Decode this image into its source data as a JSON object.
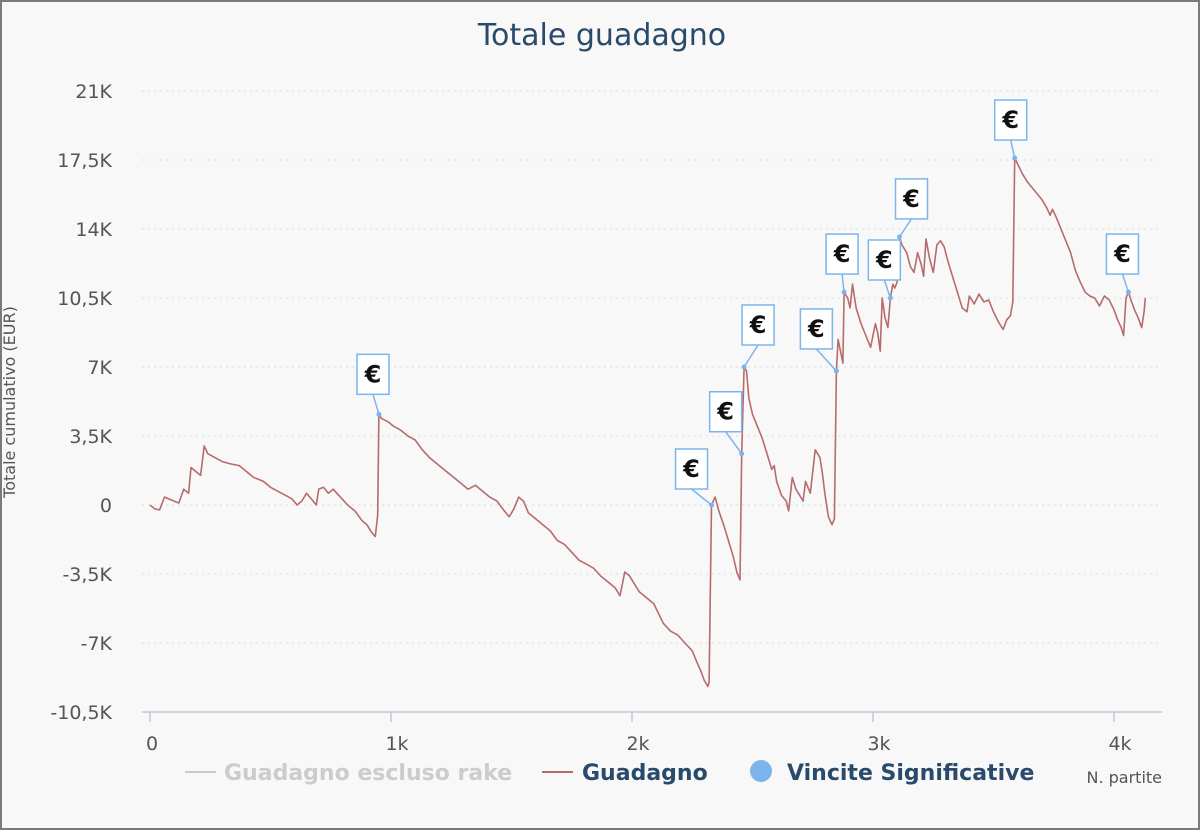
{
  "chart_data": {
    "type": "line",
    "title": "Totale guadagno",
    "xlabel": "N. partite",
    "ylabel": "Totale cumulativo (EUR)",
    "xlim": [
      0,
      4200
    ],
    "ylim": [
      -10500,
      21000
    ],
    "x_ticks": [
      {
        "value": 0,
        "label": "0"
      },
      {
        "value": 1000,
        "label": "1k"
      },
      {
        "value": 2000,
        "label": "2k"
      },
      {
        "value": 3000,
        "label": "3k"
      },
      {
        "value": 4000,
        "label": "4k"
      }
    ],
    "y_ticks": [
      {
        "value": 21000,
        "label": "21K"
      },
      {
        "value": 17500,
        "label": "17,5K"
      },
      {
        "value": 14000,
        "label": "14K"
      },
      {
        "value": 10500,
        "label": "10,5K"
      },
      {
        "value": 7000,
        "label": "7K"
      },
      {
        "value": 3500,
        "label": "3,5K"
      },
      {
        "value": 0,
        "label": "0"
      },
      {
        "value": -3500,
        "label": "-3,5K"
      },
      {
        "value": -7000,
        "label": "-7K"
      },
      {
        "value": -10500,
        "label": "-10,5K"
      }
    ],
    "grid": true,
    "legend_position": "bottom",
    "series": [
      {
        "name": "Guadagno escluso rake",
        "color": "#cccccc",
        "hidden": true,
        "points": []
      },
      {
        "name": "Guadagno",
        "color": "#b86b6b",
        "points": [
          [
            0,
            0
          ],
          [
            20,
            -200
          ],
          [
            40,
            -250
          ],
          [
            60,
            400
          ],
          [
            80,
            300
          ],
          [
            100,
            200
          ],
          [
            120,
            100
          ],
          [
            140,
            800
          ],
          [
            160,
            600
          ],
          [
            170,
            1900
          ],
          [
            190,
            1700
          ],
          [
            210,
            1500
          ],
          [
            225,
            3000
          ],
          [
            240,
            2600
          ],
          [
            270,
            2400
          ],
          [
            300,
            2200
          ],
          [
            330,
            2100
          ],
          [
            370,
            2000
          ],
          [
            400,
            1700
          ],
          [
            430,
            1400
          ],
          [
            470,
            1200
          ],
          [
            500,
            900
          ],
          [
            530,
            700
          ],
          [
            560,
            500
          ],
          [
            590,
            300
          ],
          [
            610,
            0
          ],
          [
            630,
            200
          ],
          [
            650,
            600
          ],
          [
            670,
            300
          ],
          [
            690,
            0
          ],
          [
            700,
            800
          ],
          [
            720,
            900
          ],
          [
            740,
            600
          ],
          [
            760,
            800
          ],
          [
            790,
            400
          ],
          [
            820,
            0
          ],
          [
            850,
            -300
          ],
          [
            880,
            -800
          ],
          [
            900,
            -1000
          ],
          [
            920,
            -1400
          ],
          [
            935,
            -1600
          ],
          [
            945,
            -500
          ],
          [
            950,
            4600
          ],
          [
            960,
            4400
          ],
          [
            990,
            4200
          ],
          [
            1010,
            4000
          ],
          [
            1040,
            3800
          ],
          [
            1070,
            3500
          ],
          [
            1100,
            3300
          ],
          [
            1130,
            2800
          ],
          [
            1160,
            2400
          ],
          [
            1200,
            2000
          ],
          [
            1230,
            1700
          ],
          [
            1260,
            1400
          ],
          [
            1290,
            1100
          ],
          [
            1320,
            800
          ],
          [
            1350,
            1000
          ],
          [
            1380,
            700
          ],
          [
            1410,
            400
          ],
          [
            1440,
            200
          ],
          [
            1470,
            -300
          ],
          [
            1490,
            -600
          ],
          [
            1510,
            -200
          ],
          [
            1530,
            400
          ],
          [
            1550,
            200
          ],
          [
            1570,
            -400
          ],
          [
            1600,
            -700
          ],
          [
            1630,
            -1000
          ],
          [
            1660,
            -1300
          ],
          [
            1690,
            -1800
          ],
          [
            1720,
            -2000
          ],
          [
            1750,
            -2400
          ],
          [
            1780,
            -2800
          ],
          [
            1810,
            -3000
          ],
          [
            1840,
            -3200
          ],
          [
            1870,
            -3600
          ],
          [
            1900,
            -3900
          ],
          [
            1930,
            -4200
          ],
          [
            1950,
            -4600
          ],
          [
            1970,
            -3400
          ],
          [
            1990,
            -3600
          ],
          [
            2010,
            -4000
          ],
          [
            2030,
            -4400
          ],
          [
            2060,
            -4700
          ],
          [
            2090,
            -5000
          ],
          [
            2110,
            -5500
          ],
          [
            2130,
            -6000
          ],
          [
            2160,
            -6400
          ],
          [
            2190,
            -6600
          ],
          [
            2220,
            -7000
          ],
          [
            2250,
            -7400
          ],
          [
            2270,
            -8000
          ],
          [
            2285,
            -8400
          ],
          [
            2300,
            -8900
          ],
          [
            2315,
            -9200
          ],
          [
            2320,
            -9000
          ],
          [
            2330,
            0
          ],
          [
            2345,
            400
          ],
          [
            2360,
            -300
          ],
          [
            2380,
            -1000
          ],
          [
            2400,
            -1800
          ],
          [
            2420,
            -2600
          ],
          [
            2435,
            -3400
          ],
          [
            2448,
            -3800
          ],
          [
            2455,
            2600
          ],
          [
            2465,
            7000
          ],
          [
            2475,
            6800
          ],
          [
            2485,
            5400
          ],
          [
            2500,
            4600
          ],
          [
            2520,
            4000
          ],
          [
            2540,
            3400
          ],
          [
            2560,
            2600
          ],
          [
            2580,
            1800
          ],
          [
            2590,
            2000
          ],
          [
            2600,
            1200
          ],
          [
            2620,
            500
          ],
          [
            2640,
            200
          ],
          [
            2650,
            -300
          ],
          [
            2665,
            1400
          ],
          [
            2680,
            800
          ],
          [
            2700,
            400
          ],
          [
            2710,
            200
          ],
          [
            2720,
            1200
          ],
          [
            2740,
            600
          ],
          [
            2760,
            2800
          ],
          [
            2780,
            2400
          ],
          [
            2790,
            1600
          ],
          [
            2800,
            600
          ],
          [
            2815,
            -600
          ],
          [
            2830,
            -1000
          ],
          [
            2840,
            -700
          ],
          [
            2848,
            6800
          ],
          [
            2855,
            8400
          ],
          [
            2865,
            7800
          ],
          [
            2875,
            7200
          ],
          [
            2880,
            10800
          ],
          [
            2895,
            10500
          ],
          [
            2905,
            10000
          ],
          [
            2915,
            11200
          ],
          [
            2930,
            10000
          ],
          [
            2950,
            9200
          ],
          [
            2970,
            8600
          ],
          [
            2990,
            8000
          ],
          [
            3010,
            9200
          ],
          [
            3020,
            8700
          ],
          [
            3030,
            7800
          ],
          [
            3038,
            10500
          ],
          [
            3050,
            9500
          ],
          [
            3062,
            9000
          ],
          [
            3072,
            10500
          ],
          [
            3082,
            11200
          ],
          [
            3090,
            11000
          ],
          [
            3100,
            11300
          ],
          [
            3110,
            13600
          ],
          [
            3120,
            13200
          ],
          [
            3140,
            12800
          ],
          [
            3155,
            12100
          ],
          [
            3170,
            11800
          ],
          [
            3185,
            12800
          ],
          [
            3200,
            12200
          ],
          [
            3210,
            11600
          ],
          [
            3220,
            13500
          ],
          [
            3235,
            12500
          ],
          [
            3250,
            11800
          ],
          [
            3265,
            13200
          ],
          [
            3280,
            13400
          ],
          [
            3295,
            13100
          ],
          [
            3310,
            12400
          ],
          [
            3330,
            11600
          ],
          [
            3350,
            10800
          ],
          [
            3370,
            10000
          ],
          [
            3390,
            9800
          ],
          [
            3400,
            10600
          ],
          [
            3420,
            10200
          ],
          [
            3440,
            10700
          ],
          [
            3460,
            10300
          ],
          [
            3480,
            10400
          ],
          [
            3500,
            9800
          ],
          [
            3520,
            9300
          ],
          [
            3540,
            8900
          ],
          [
            3555,
            9400
          ],
          [
            3570,
            9600
          ],
          [
            3580,
            10300
          ],
          [
            3588,
            17600
          ],
          [
            3600,
            17300
          ],
          [
            3620,
            16800
          ],
          [
            3640,
            16400
          ],
          [
            3660,
            16100
          ],
          [
            3680,
            15800
          ],
          [
            3700,
            15500
          ],
          [
            3720,
            15100
          ],
          [
            3735,
            14700
          ],
          [
            3745,
            15000
          ],
          [
            3760,
            14600
          ],
          [
            3780,
            14000
          ],
          [
            3800,
            13400
          ],
          [
            3820,
            12800
          ],
          [
            3840,
            11900
          ],
          [
            3860,
            11300
          ],
          [
            3880,
            10800
          ],
          [
            3900,
            10600
          ],
          [
            3920,
            10500
          ],
          [
            3940,
            10100
          ],
          [
            3960,
            10600
          ],
          [
            3980,
            10400
          ],
          [
            4000,
            9900
          ],
          [
            4015,
            9400
          ],
          [
            4030,
            9000
          ],
          [
            4040,
            8600
          ],
          [
            4050,
            10500
          ],
          [
            4060,
            10800
          ],
          [
            4070,
            10400
          ],
          [
            4085,
            9900
          ],
          [
            4100,
            9500
          ],
          [
            4115,
            9000
          ],
          [
            4125,
            9800
          ],
          [
            4130,
            10500
          ]
        ]
      }
    ],
    "markers": {
      "name": "Vincite Significative",
      "color": "#7cb5ec",
      "symbol": "€",
      "points": [
        [
          950,
          4600
        ],
        [
          2330,
          0
        ],
        [
          2455,
          2600
        ],
        [
          2465,
          7000
        ],
        [
          2848,
          6800
        ],
        [
          2880,
          10800
        ],
        [
          3072,
          10500
        ],
        [
          3110,
          13600
        ],
        [
          3588,
          17600
        ],
        [
          4060,
          10800
        ]
      ]
    }
  }
}
